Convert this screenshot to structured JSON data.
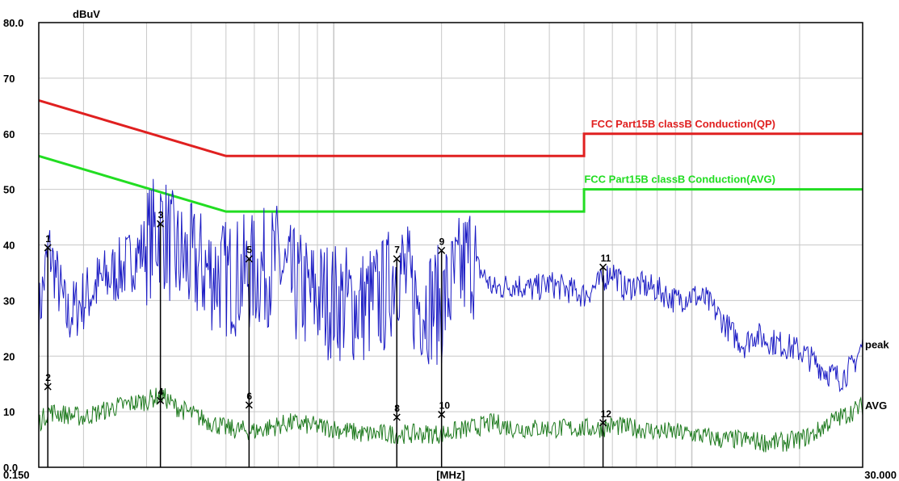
{
  "chart_data": {
    "type": "line",
    "ylabel": "dBuV",
    "xlabel": "[MHz]",
    "x_scale": "log",
    "xlim": [
      0.15,
      30
    ],
    "ylim": [
      0,
      80
    ],
    "y_ticks": [
      "0.0",
      "10",
      "20",
      "30",
      "40",
      "50",
      "60",
      "70",
      "80.0"
    ],
    "x_tick_labels": [
      "0.150",
      "30.000"
    ],
    "grid": true,
    "limits": [
      {
        "name": "FCC  Part15B  classB  Conduction(QP)",
        "color": "#e02020",
        "x": [
          0.15,
          0.5,
          5,
          5,
          30
        ],
        "y": [
          66,
          56,
          56,
          60,
          60
        ]
      },
      {
        "name": "FCC  Part15B  classB  Conduction(AVG)",
        "color": "#22dd22",
        "x": [
          0.15,
          0.5,
          5,
          5,
          30
        ],
        "y": [
          56,
          46,
          46,
          50,
          50
        ]
      }
    ],
    "series": [
      {
        "name": "peak",
        "color": "#1c1cc4",
        "x": [
          0.15,
          0.16,
          0.18,
          0.22,
          0.26,
          0.3,
          0.33,
          0.36,
          0.42,
          0.5,
          0.6,
          0.7,
          0.75,
          0.85,
          1.0,
          1.2,
          1.4,
          1.5,
          1.7,
          2.0,
          2.4,
          2.8,
          3.2,
          3.6,
          4.0,
          4.5,
          5.0,
          5.5,
          6.0,
          6.5,
          7.0,
          8.0,
          9.0,
          10.0,
          11.0,
          12.0,
          13.0,
          14.0,
          15.0,
          16.0,
          18.0,
          20.0,
          22.0,
          24.0,
          26.0,
          28.0,
          30.0
        ],
        "y": [
          27,
          39.5,
          27,
          33,
          36,
          40,
          43.5,
          38,
          36,
          34,
          35,
          37,
          33,
          31,
          30,
          29,
          31,
          37,
          30,
          29,
          38,
          32,
          33,
          32,
          33,
          32,
          31,
          33,
          35.5,
          32,
          33,
          32,
          30,
          31,
          30,
          27,
          24,
          22,
          24,
          23,
          22,
          21,
          19,
          17,
          16,
          18,
          22
        ]
      },
      {
        "name": "AVG",
        "color": "#1e7a1e",
        "x": [
          0.15,
          0.16,
          0.2,
          0.25,
          0.3,
          0.33,
          0.36,
          0.42,
          0.5,
          0.6,
          0.75,
          1.0,
          1.2,
          1.5,
          2.0,
          2.4,
          2.8,
          3.2,
          4.0,
          5.0,
          5.5,
          6.0,
          7.0,
          8.0,
          10.0,
          12.0,
          14.0,
          16.0,
          18.0,
          20.0,
          22.0,
          24.0,
          26.0,
          28.0,
          30.0
        ],
        "y": [
          8,
          10,
          9,
          11,
          12,
          13,
          11,
          9,
          7,
          6.5,
          8,
          7,
          6,
          6,
          6,
          7,
          8,
          7,
          7,
          7,
          7,
          7.5,
          7,
          6.5,
          6,
          5,
          5,
          4.5,
          4.5,
          5,
          6,
          8,
          9,
          10,
          11
        ]
      }
    ],
    "markers": [
      {
        "label": "1",
        "x": 0.159,
        "y": 39.5
      },
      {
        "label": "2",
        "x": 0.159,
        "y": 14.5
      },
      {
        "label": "3",
        "x": 0.328,
        "y": 43.8
      },
      {
        "label": "4",
        "x": 0.328,
        "y": 12.0
      },
      {
        "label": "5",
        "x": 0.58,
        "y": 37.5
      },
      {
        "label": "6",
        "x": 0.58,
        "y": 11.2
      },
      {
        "label": "7",
        "x": 1.5,
        "y": 37.5
      },
      {
        "label": "8",
        "x": 1.5,
        "y": 9.0
      },
      {
        "label": "9",
        "x": 2.0,
        "y": 39.0
      },
      {
        "label": "10",
        "x": 2.0,
        "y": 9.5
      },
      {
        "label": "11",
        "x": 5.65,
        "y": 36.0
      },
      {
        "label": "12",
        "x": 5.65,
        "y": 8.0
      }
    ]
  }
}
